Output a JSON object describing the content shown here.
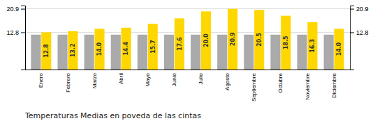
{
  "chart_data": {
    "type": "bar",
    "title": "Temperaturas Medias en poveda de las cintas",
    "categories": [
      "Enero",
      "Febrero",
      "Marzo",
      "Abril",
      "Mayo",
      "Junio",
      "Julio",
      "Agosto",
      "Septiembre",
      "Octubre",
      "Noviembre",
      "Diciembre"
    ],
    "series": [
      {
        "color": "#AAAAAA",
        "values": [
          12.0,
          12.0,
          12.0,
          12.0,
          12.0,
          12.0,
          12.0,
          12.0,
          12.0,
          12.0,
          12.0,
          12.0
        ]
      },
      {
        "color": "#FFD700",
        "data_labels": true,
        "values": [
          12.8,
          13.2,
          14.0,
          14.4,
          15.7,
          17.6,
          20.0,
          20.9,
          20.5,
          18.5,
          16.3,
          14.0
        ],
        "value_labels": [
          "12.8",
          "13.2",
          "14.0",
          "14.4",
          "15.7",
          "17.6",
          "20.0",
          "20.9",
          "20.5",
          "18.5",
          "16.3",
          "14.0"
        ]
      }
    ],
    "ylim": [
      0,
      22.0
    ],
    "yticks": [
      12.8,
      20.9
    ],
    "y2lim": [
      0,
      22.0
    ],
    "y2ticks": [
      12.8,
      20.9
    ],
    "grid": true
  }
}
